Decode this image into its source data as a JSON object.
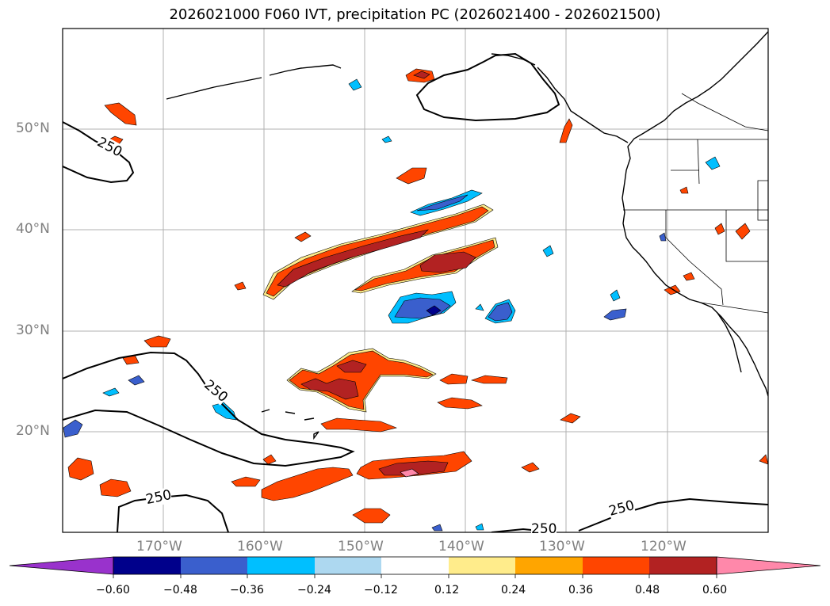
{
  "title": "2026021000 F060 IVT, precipitation PC (2026021400 - 2026021500)",
  "map": {
    "lon_range": [
      -180,
      -110
    ],
    "lat_range": [
      10,
      60
    ],
    "lat_ticks": [
      {
        "value": 50,
        "label": "50°N"
      },
      {
        "value": 40,
        "label": "40°N"
      },
      {
        "value": 30,
        "label": "30°N"
      },
      {
        "value": 20,
        "label": "20°N"
      }
    ],
    "lon_ticks": [
      {
        "value": -170,
        "label": "170°W"
      },
      {
        "value": -160,
        "label": "160°W"
      },
      {
        "value": -150,
        "label": "150°W"
      },
      {
        "value": -140,
        "label": "140°W"
      },
      {
        "value": -130,
        "label": "130°W"
      },
      {
        "value": -120,
        "label": "120°W"
      }
    ],
    "ivt_contour_labels": [
      "250",
      "250",
      "250",
      "250",
      "250"
    ]
  },
  "colorbar": {
    "colors": [
      "#9932cc",
      "#00008b",
      "#3a5fcd",
      "#00bfff",
      "#add8f0",
      "#ffffff",
      "#ffec8b",
      "#ffa500",
      "#ff4500",
      "#b22222",
      "#ff88aa"
    ],
    "ticks": [
      "−0.60",
      "−0.48",
      "−0.36",
      "−0.24",
      "−0.12",
      "0.12",
      "0.24",
      "0.36",
      "0.48",
      "0.60"
    ]
  }
}
